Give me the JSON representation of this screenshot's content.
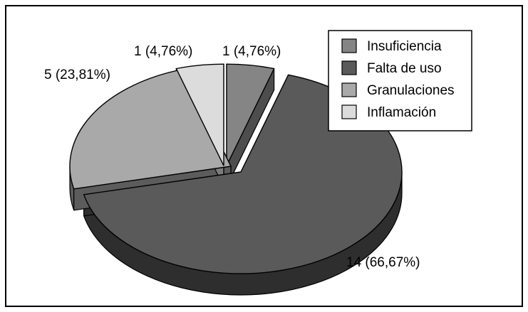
{
  "chart_data": {
    "type": "pie",
    "style": "3d-exploded",
    "title": "",
    "legend_position": "top-right",
    "categories": [
      "Insuficiencia",
      "Falta de uso",
      "Granulaciones",
      "Inflamación"
    ],
    "values": [
      1,
      14,
      5,
      1
    ],
    "percentages": [
      4.76,
      66.67,
      23.81,
      4.76
    ],
    "data_labels": [
      "1 (4,76%)",
      "14 (66,67%)",
      "5 (23,81%)",
      "1 (4,76%)"
    ],
    "colors": [
      "#858585",
      "#5a5a5a",
      "#a9a9a9",
      "#dcdcdc"
    ],
    "side_colors": [
      "#4d4d4d",
      "#2e2e2e",
      "#5c5c5c",
      "#7c7c7c"
    ]
  }
}
